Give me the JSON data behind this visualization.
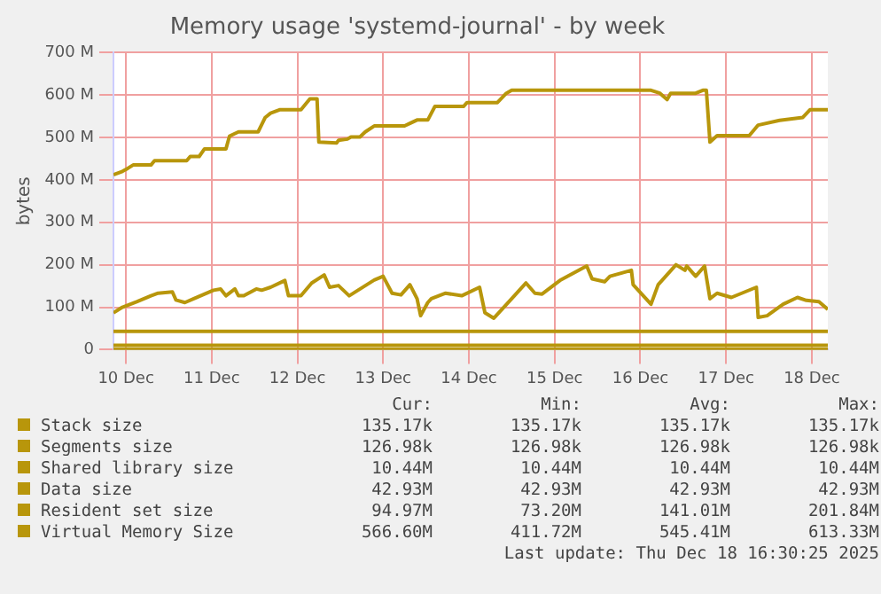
{
  "chart_data": {
    "type": "line",
    "title": "Memory usage 'systemd-journal' - by week",
    "ylabel": "bytes",
    "legend": "bottom",
    "grid": true,
    "marker": "none",
    "line_style": "solid",
    "xlim": [
      "2025-12-10T08:30",
      "2025-12-18T16:30"
    ],
    "xticks": [
      {
        "value": "2025-12-10T12:00",
        "label": "10 Dec"
      },
      {
        "value": "2025-12-11T12:00",
        "label": "11 Dec"
      },
      {
        "value": "2025-12-12T12:00",
        "label": "12 Dec"
      },
      {
        "value": "2025-12-13T12:00",
        "label": "13 Dec"
      },
      {
        "value": "2025-12-14T12:00",
        "label": "14 Dec"
      },
      {
        "value": "2025-12-15T12:00",
        "label": "15 Dec"
      },
      {
        "value": "2025-12-16T12:00",
        "label": "16 Dec"
      },
      {
        "value": "2025-12-17T12:00",
        "label": "17 Dec"
      },
      {
        "value": "2025-12-18T12:00",
        "label": "18 Dec"
      }
    ],
    "ylim": [
      0,
      700
    ],
    "yticks": [
      0,
      {
        "value": 100,
        "label": "100 M"
      },
      {
        "value": 200,
        "label": "200 M"
      },
      {
        "value": 300,
        "label": "300 M"
      },
      {
        "value": 400,
        "label": "400 M"
      },
      {
        "value": 500,
        "label": "500 M"
      },
      {
        "value": 600,
        "label": "600 M"
      },
      {
        "value": 700,
        "label": "700 M"
      }
    ],
    "series": [
      {
        "name": "Stack size",
        "color": "#b8960b",
        "x": [
          "2025-12-10T08:30",
          "2025-12-18T16:30"
        ],
        "values": [
          0.135,
          0.135
        ]
      },
      {
        "name": "Segments size",
        "color": "#b8960b",
        "x": [
          "2025-12-10T08:30",
          "2025-12-18T16:30"
        ],
        "values": [
          0.127,
          0.127
        ]
      },
      {
        "name": "Shared library size",
        "color": "#b8960b",
        "x": [
          "2025-12-10T08:30",
          "2025-12-18T16:30"
        ],
        "values": [
          10.44,
          10.44
        ]
      },
      {
        "name": "Data size",
        "color": "#b8960b",
        "x": [
          "2025-12-10T08:30",
          "2025-12-18T16:30"
        ],
        "values": [
          42.93,
          42.93
        ]
      },
      {
        "name": "Resident set size",
        "color": "#b8960b",
        "x": [
          "2025-12-10T08:30",
          "2025-12-10T11:00",
          "2025-12-10T15:00",
          "2025-12-10T19:00",
          "2025-12-10T21:00",
          "2025-12-11T01:00",
          "2025-12-11T02:00",
          "2025-12-11T04:30",
          "2025-12-11T07:00",
          "2025-12-11T12:30",
          "2025-12-11T14:30",
          "2025-12-11T16:00",
          "2025-12-11T18:30",
          "2025-12-11T19:30",
          "2025-12-11T21:00",
          "2025-12-12T00:30",
          "2025-12-12T02:00",
          "2025-12-12T04:30",
          "2025-12-12T08:30",
          "2025-12-12T09:30",
          "2025-12-12T13:00",
          "2025-12-12T16:00",
          "2025-12-12T19:30",
          "2025-12-12T21:00",
          "2025-12-12T23:30",
          "2025-12-13T02:30",
          "2025-12-13T09:30",
          "2025-12-13T12:00",
          "2025-12-13T14:30",
          "2025-12-13T17:00",
          "2025-12-13T19:30",
          "2025-12-13T21:30",
          "2025-12-13T22:30",
          "2025-12-14T00:30",
          "2025-12-14T01:30",
          "2025-12-14T05:30",
          "2025-12-14T10:00",
          "2025-12-14T15:00",
          "2025-12-14T16:30",
          "2025-12-14T19:00",
          "2025-12-15T00:00",
          "2025-12-15T04:00",
          "2025-12-15T06:30",
          "2025-12-15T08:30",
          "2025-12-15T13:30",
          "2025-12-15T21:00",
          "2025-12-15T22:30",
          "2025-12-16T02:00",
          "2025-12-16T03:30",
          "2025-12-16T09:30",
          "2025-12-16T10:00",
          "2025-12-16T15:00",
          "2025-12-16T17:00",
          "2025-12-16T22:00",
          "2025-12-17T00:30",
          "2025-12-17T01:00",
          "2025-12-17T03:30",
          "2025-12-17T06:00",
          "2025-12-17T07:30",
          "2025-12-17T09:30",
          "2025-12-17T13:30",
          "2025-12-17T20:30",
          "2025-12-17T21:00",
          "2025-12-17T23:30",
          "2025-12-18T04:00",
          "2025-12-18T08:00",
          "2025-12-18T10:30",
          "2025-12-18T14:00",
          "2025-12-18T16:30"
        ],
        "values": [
          87,
          100,
          113,
          127,
          133,
          136,
          117,
          111,
          120,
          140,
          143,
          127,
          143,
          127,
          127,
          143,
          140,
          147,
          163,
          127,
          127,
          157,
          176,
          147,
          151,
          127,
          164,
          173,
          133,
          129,
          153,
          120,
          80,
          111,
          120,
          133,
          127,
          147,
          87,
          74,
          120,
          157,
          133,
          131,
          163,
          197,
          167,
          160,
          173,
          187,
          153,
          107,
          153,
          200,
          187,
          197,
          173,
          197,
          120,
          133,
          123,
          147,
          76,
          80,
          107,
          123,
          116,
          113,
          95
        ]
      },
      {
        "name": "Virtual Memory Size",
        "color": "#b8960b",
        "x": [
          "2025-12-10T08:30",
          "2025-12-10T11:00",
          "2025-12-10T12:30",
          "2025-12-10T14:00",
          "2025-12-10T19:00",
          "2025-12-10T20:00",
          "2025-12-11T05:00",
          "2025-12-11T06:00",
          "2025-12-11T08:30",
          "2025-12-11T10:00",
          "2025-12-11T16:00",
          "2025-12-11T17:00",
          "2025-12-11T19:30",
          "2025-12-12T01:00",
          "2025-12-12T03:00",
          "2025-12-12T04:30",
          "2025-12-12T07:00",
          "2025-12-12T13:00",
          "2025-12-12T15:30",
          "2025-12-12T17:30",
          "2025-12-12T18:00",
          "2025-12-12T23:00",
          "2025-12-12T23:30",
          "2025-12-13T02:00",
          "2025-12-13T03:00",
          "2025-12-13T05:30",
          "2025-12-13T07:00",
          "2025-12-13T09:30",
          "2025-12-13T18:00",
          "2025-12-13T19:30",
          "2025-12-13T21:30",
          "2025-12-14T00:30",
          "2025-12-14T02:30",
          "2025-12-14T10:30",
          "2025-12-14T11:30",
          "2025-12-14T20:00",
          "2025-12-14T22:30",
          "2025-12-15T00:00",
          "2025-12-16T15:00",
          "2025-12-16T17:30",
          "2025-12-16T19:30",
          "2025-12-16T20:30",
          "2025-12-17T03:30",
          "2025-12-17T05:30",
          "2025-12-17T06:30",
          "2025-12-17T07:30",
          "2025-12-17T09:30",
          "2025-12-17T18:30",
          "2025-12-17T21:00",
          "2025-12-18T03:00",
          "2025-12-18T09:30",
          "2025-12-18T11:30",
          "2025-12-18T16:30"
        ],
        "values": [
          412,
          420,
          427,
          435,
          435,
          445,
          445,
          455,
          455,
          473,
          473,
          503,
          513,
          513,
          547,
          557,
          565,
          565,
          591,
          591,
          489,
          487,
          493,
          496,
          501,
          501,
          513,
          527,
          527,
          533,
          541,
          541,
          573,
          573,
          582,
          582,
          604,
          611,
          611,
          604,
          589,
          604,
          604,
          611,
          611,
          489,
          504,
          504,
          529,
          540,
          547,
          565,
          565
        ]
      }
    ],
    "annotations": [
      "Cur:",
      "Min:",
      "Avg:",
      "Max:",
      "135.17k",
      "135.17k",
      "135.17k",
      "135.17k",
      "126.98k",
      "126.98k",
      "126.98k",
      "126.98k",
      "10.44M",
      "10.44M",
      "10.44M",
      "10.44M",
      "42.93M",
      "42.93M",
      "42.93M",
      "42.93M",
      "94.97M",
      "73.20M",
      "141.01M",
      "201.84M",
      "566.60M",
      "411.72M",
      "545.41M",
      "613.33M",
      "Last update: Thu Dec 18 16:30:25 2025"
    ]
  }
}
